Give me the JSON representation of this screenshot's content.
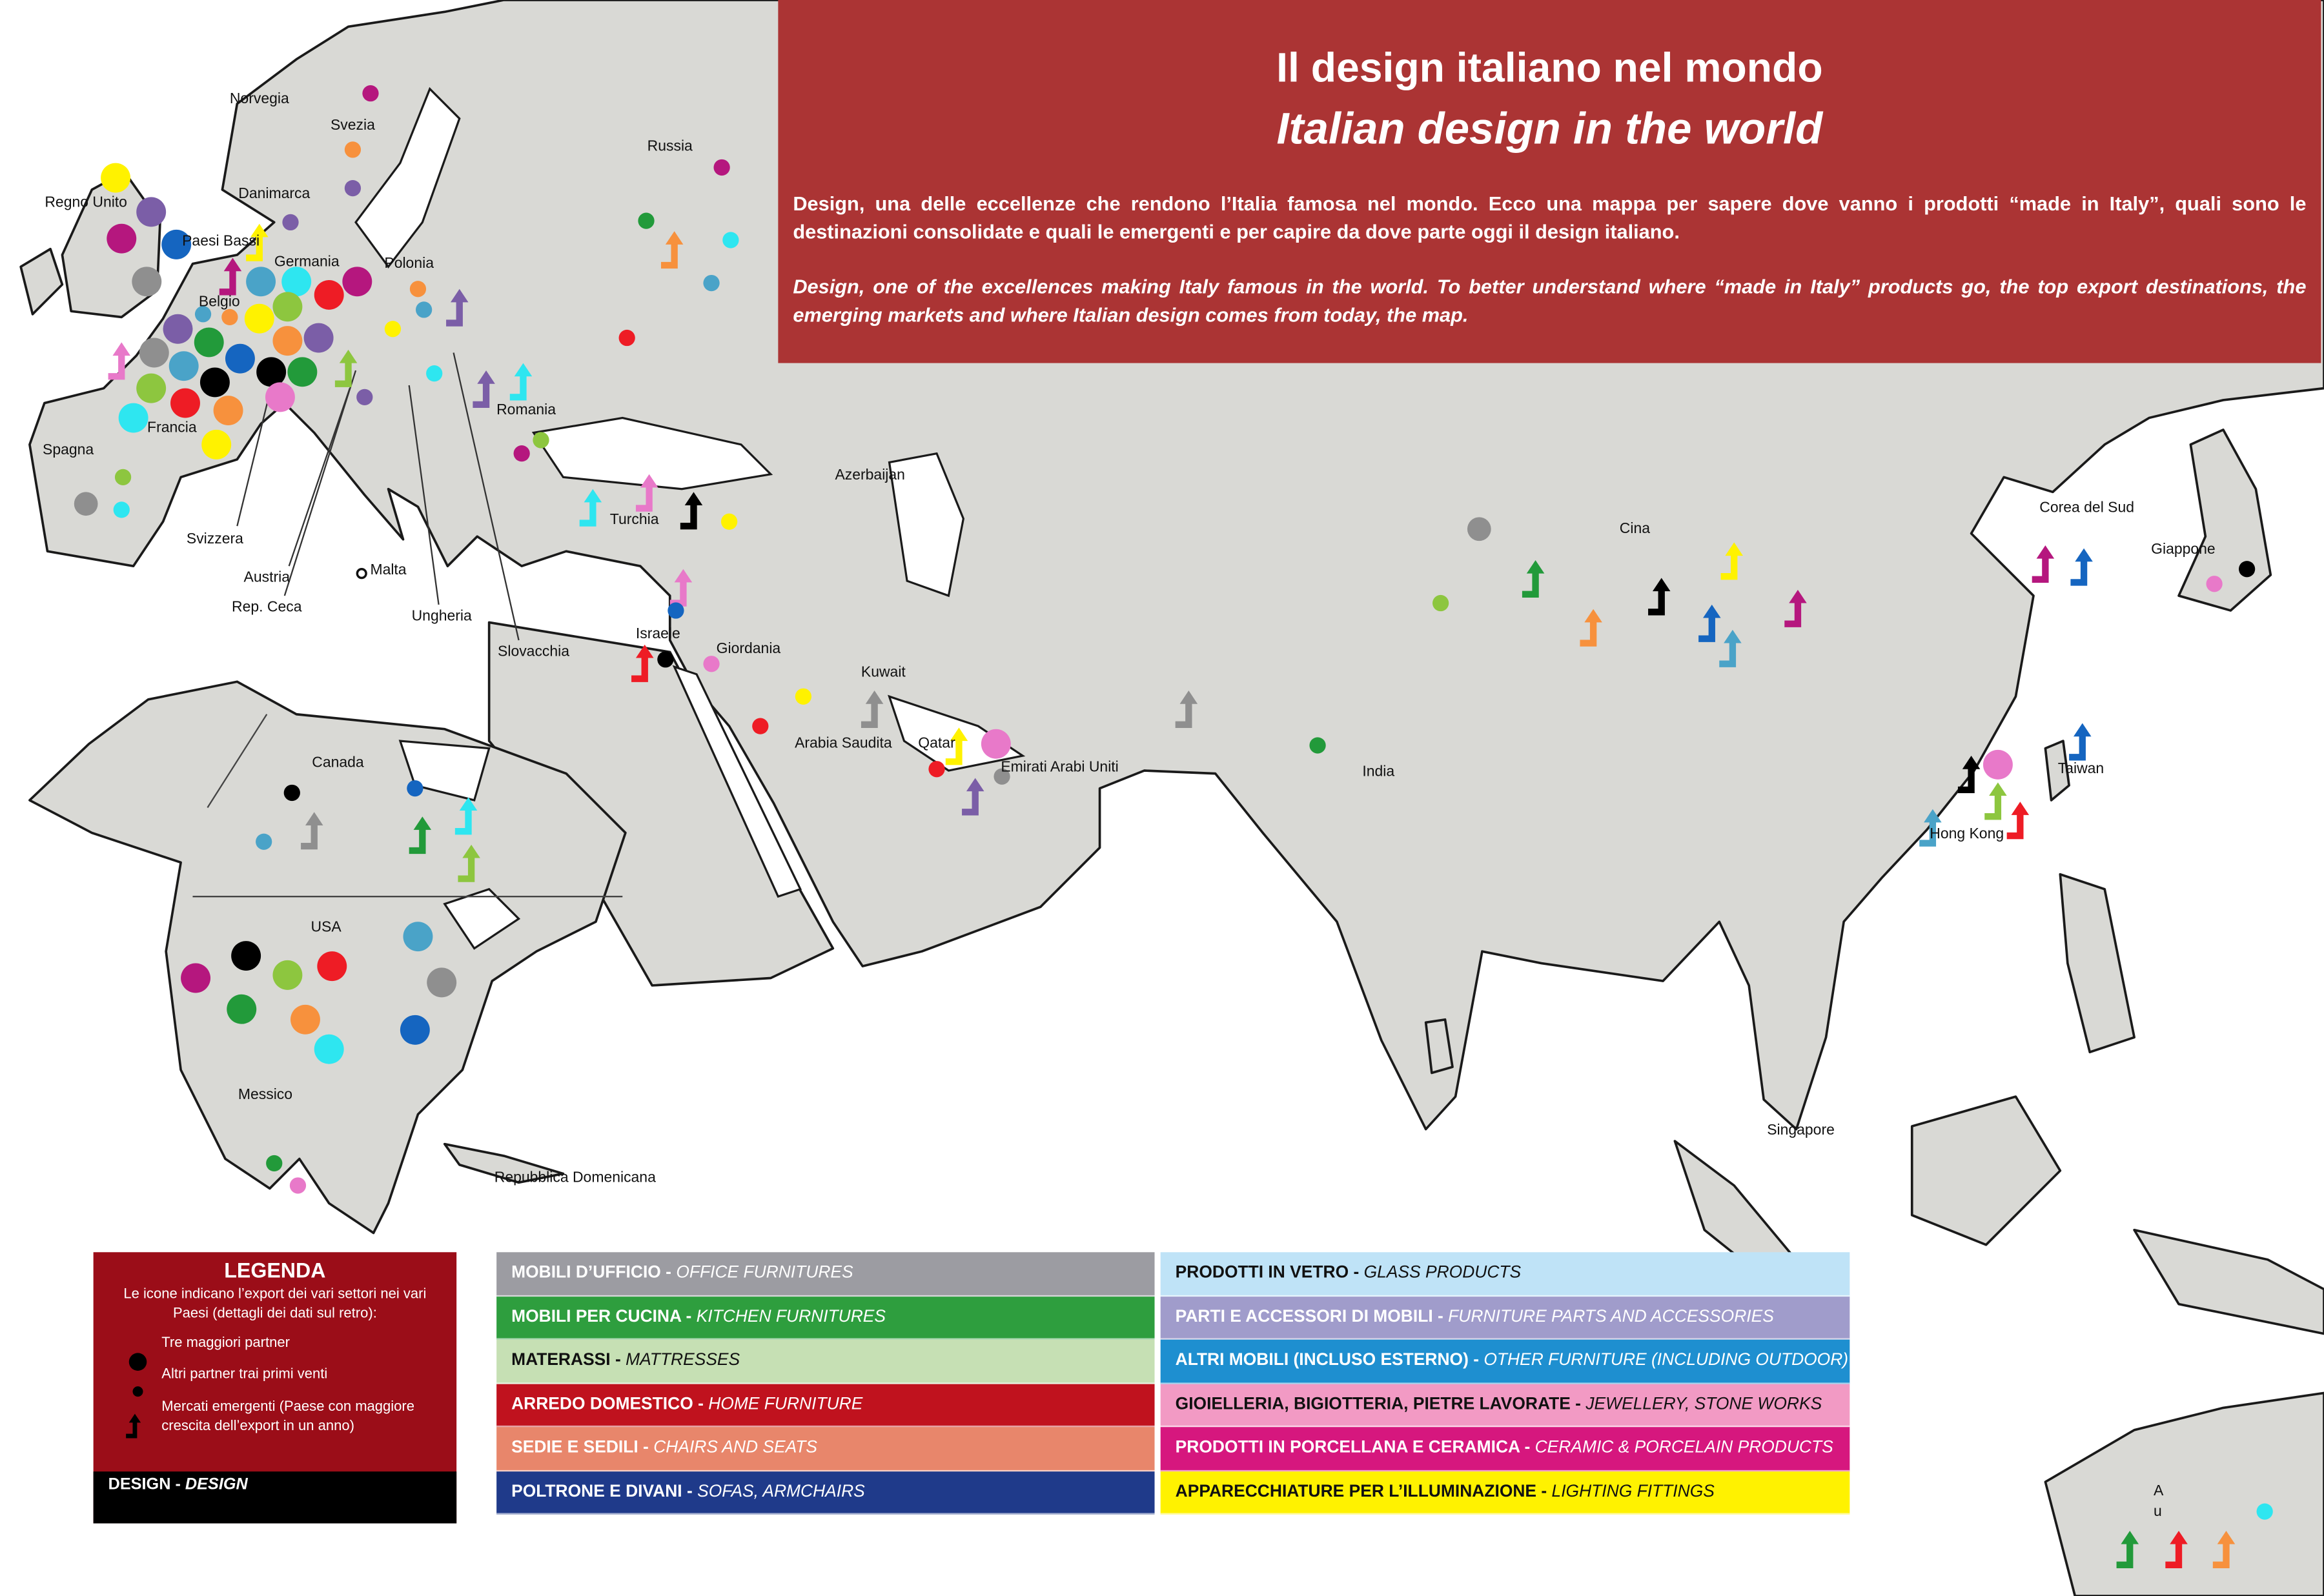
{
  "header": {
    "title": "Il design italiano nel mondo",
    "subtitle": "Italian design in the world",
    "text_it": "Design, una delle eccellenze che rendono l’Italia famosa nel mondo. Ecco una mappa per sapere dove vanno i prodotti “made in Italy”, quali sono le destinazioni consolidate e quali le emergenti e per capire da dove parte oggi il design italiano.",
    "text_en": "Design, one of the excellences making Italy famous in the world. To better understand where “made in Italy” products go, the top export destinations, the emerging markets and where Italian design comes from today, the map."
  },
  "map_labels": [
    "Norvegia",
    "Svezia",
    "Russia",
    "Regno Unito",
    "Danimarca",
    "Paesi Bassi",
    "Germania",
    "Polonia",
    "Belgio",
    "Francia",
    "Spagna",
    "Romania",
    "Azerbaijan",
    "Turchia",
    "Svizzera",
    "Austria",
    "Malta",
    "Rep. Ceca",
    "Ungheria",
    "Slovacchia",
    "Israele",
    "Giordania",
    "Kuwait",
    "Arabia Saudita",
    "Qatar",
    "Emirati Arabi Uniti",
    "Cina",
    "India",
    "Corea del Sud",
    "Giappone",
    "Taiwan",
    "Hong Kong",
    "Singapore",
    "Canada",
    "USA",
    "Messico",
    "Repubblica Domenicana"
  ],
  "corner_label": "Au",
  "legend": {
    "title": "LEGENDA",
    "description": "Le icone indicano l’export dei vari settori nei vari Paesi (dettagli dei dati sul retro):",
    "items": [
      "Tre maggiori partner",
      "Altri partner trai primi venti",
      "Mercati emergenti (Paese con maggiore crescita dell’export in un anno)"
    ],
    "footer": {
      "name": "DESIGN -",
      "name_en": "DESIGN",
      "color": "#000000",
      "marker_color": "#000000"
    }
  },
  "sectors": [
    {
      "name": "MOBILI D’UFFICIO -",
      "name_en": "OFFICE FURNITURES",
      "color": "#9c9ca2",
      "marker_color": "#8f8f8f"
    },
    {
      "name": "MOBILI PER CUCINA -",
      "name_en": "KITCHEN FURNITURES",
      "color": "#2e9e3e",
      "marker_color": "#229a3a"
    },
    {
      "name": "MATERASSI -",
      "name_en": "MATTRESSES",
      "color": "#c6e0b4",
      "marker_color": "#8dc63f"
    },
    {
      "name": "ARREDO DOMESTICO -",
      "name_en": "HOME FURNITURE",
      "color": "#c0121e",
      "marker_color": "#ee1c25"
    },
    {
      "name": "SEDIE E SEDILI -",
      "name_en": "CHAIRS AND SEATS",
      "color": "#e8866b",
      "marker_color": "#f7913d"
    },
    {
      "name": "POLTRONE E DIVANI -",
      "name_en": "SOFAS, ARMCHAIRS",
      "color": "#1f3a8a",
      "marker_color": "#1565c0"
    },
    {
      "name": "PRODOTTI IN VETRO -",
      "name_en": "GLASS PRODUCTS",
      "color": "#bfe3f7",
      "marker_color": "#2ee6f0"
    },
    {
      "name": "PARTI E ACCESSORI DI MOBILI -",
      "name_en": "FURNITURE PARTS AND ACCESSORIES",
      "color": "#a09ccb",
      "marker_color": "#7b5ea7"
    },
    {
      "name": "ALTRI MOBILI (INCLUSO ESTERNO) -",
      "name_en": "OTHER FURNITURE (INCLUDING OUTDOOR)",
      "color": "#1e8fd0",
      "marker_color": "#4aa3c8"
    },
    {
      "name": "GIOIELLERIA, BIGIOTTERIA, PIETRE LAVORATE -",
      "name_en": "JEWELLERY, STONE WORKS",
      "color": "#f29ac4",
      "marker_color": "#e879c9"
    },
    {
      "name": "PRODOTTI IN PORCELLANA E CERAMICA -",
      "name_en": "CERAMIC & PORCELAIN PRODUCTS",
      "color": "#d6177e",
      "marker_color": "#b5177e"
    },
    {
      "name": "APPARECCHIATURE PER L’ILLUMINAZIONE -",
      "name_en": "LIGHTING FITTINGS",
      "color": "#fff200",
      "marker_color": "#fff200"
    }
  ]
}
